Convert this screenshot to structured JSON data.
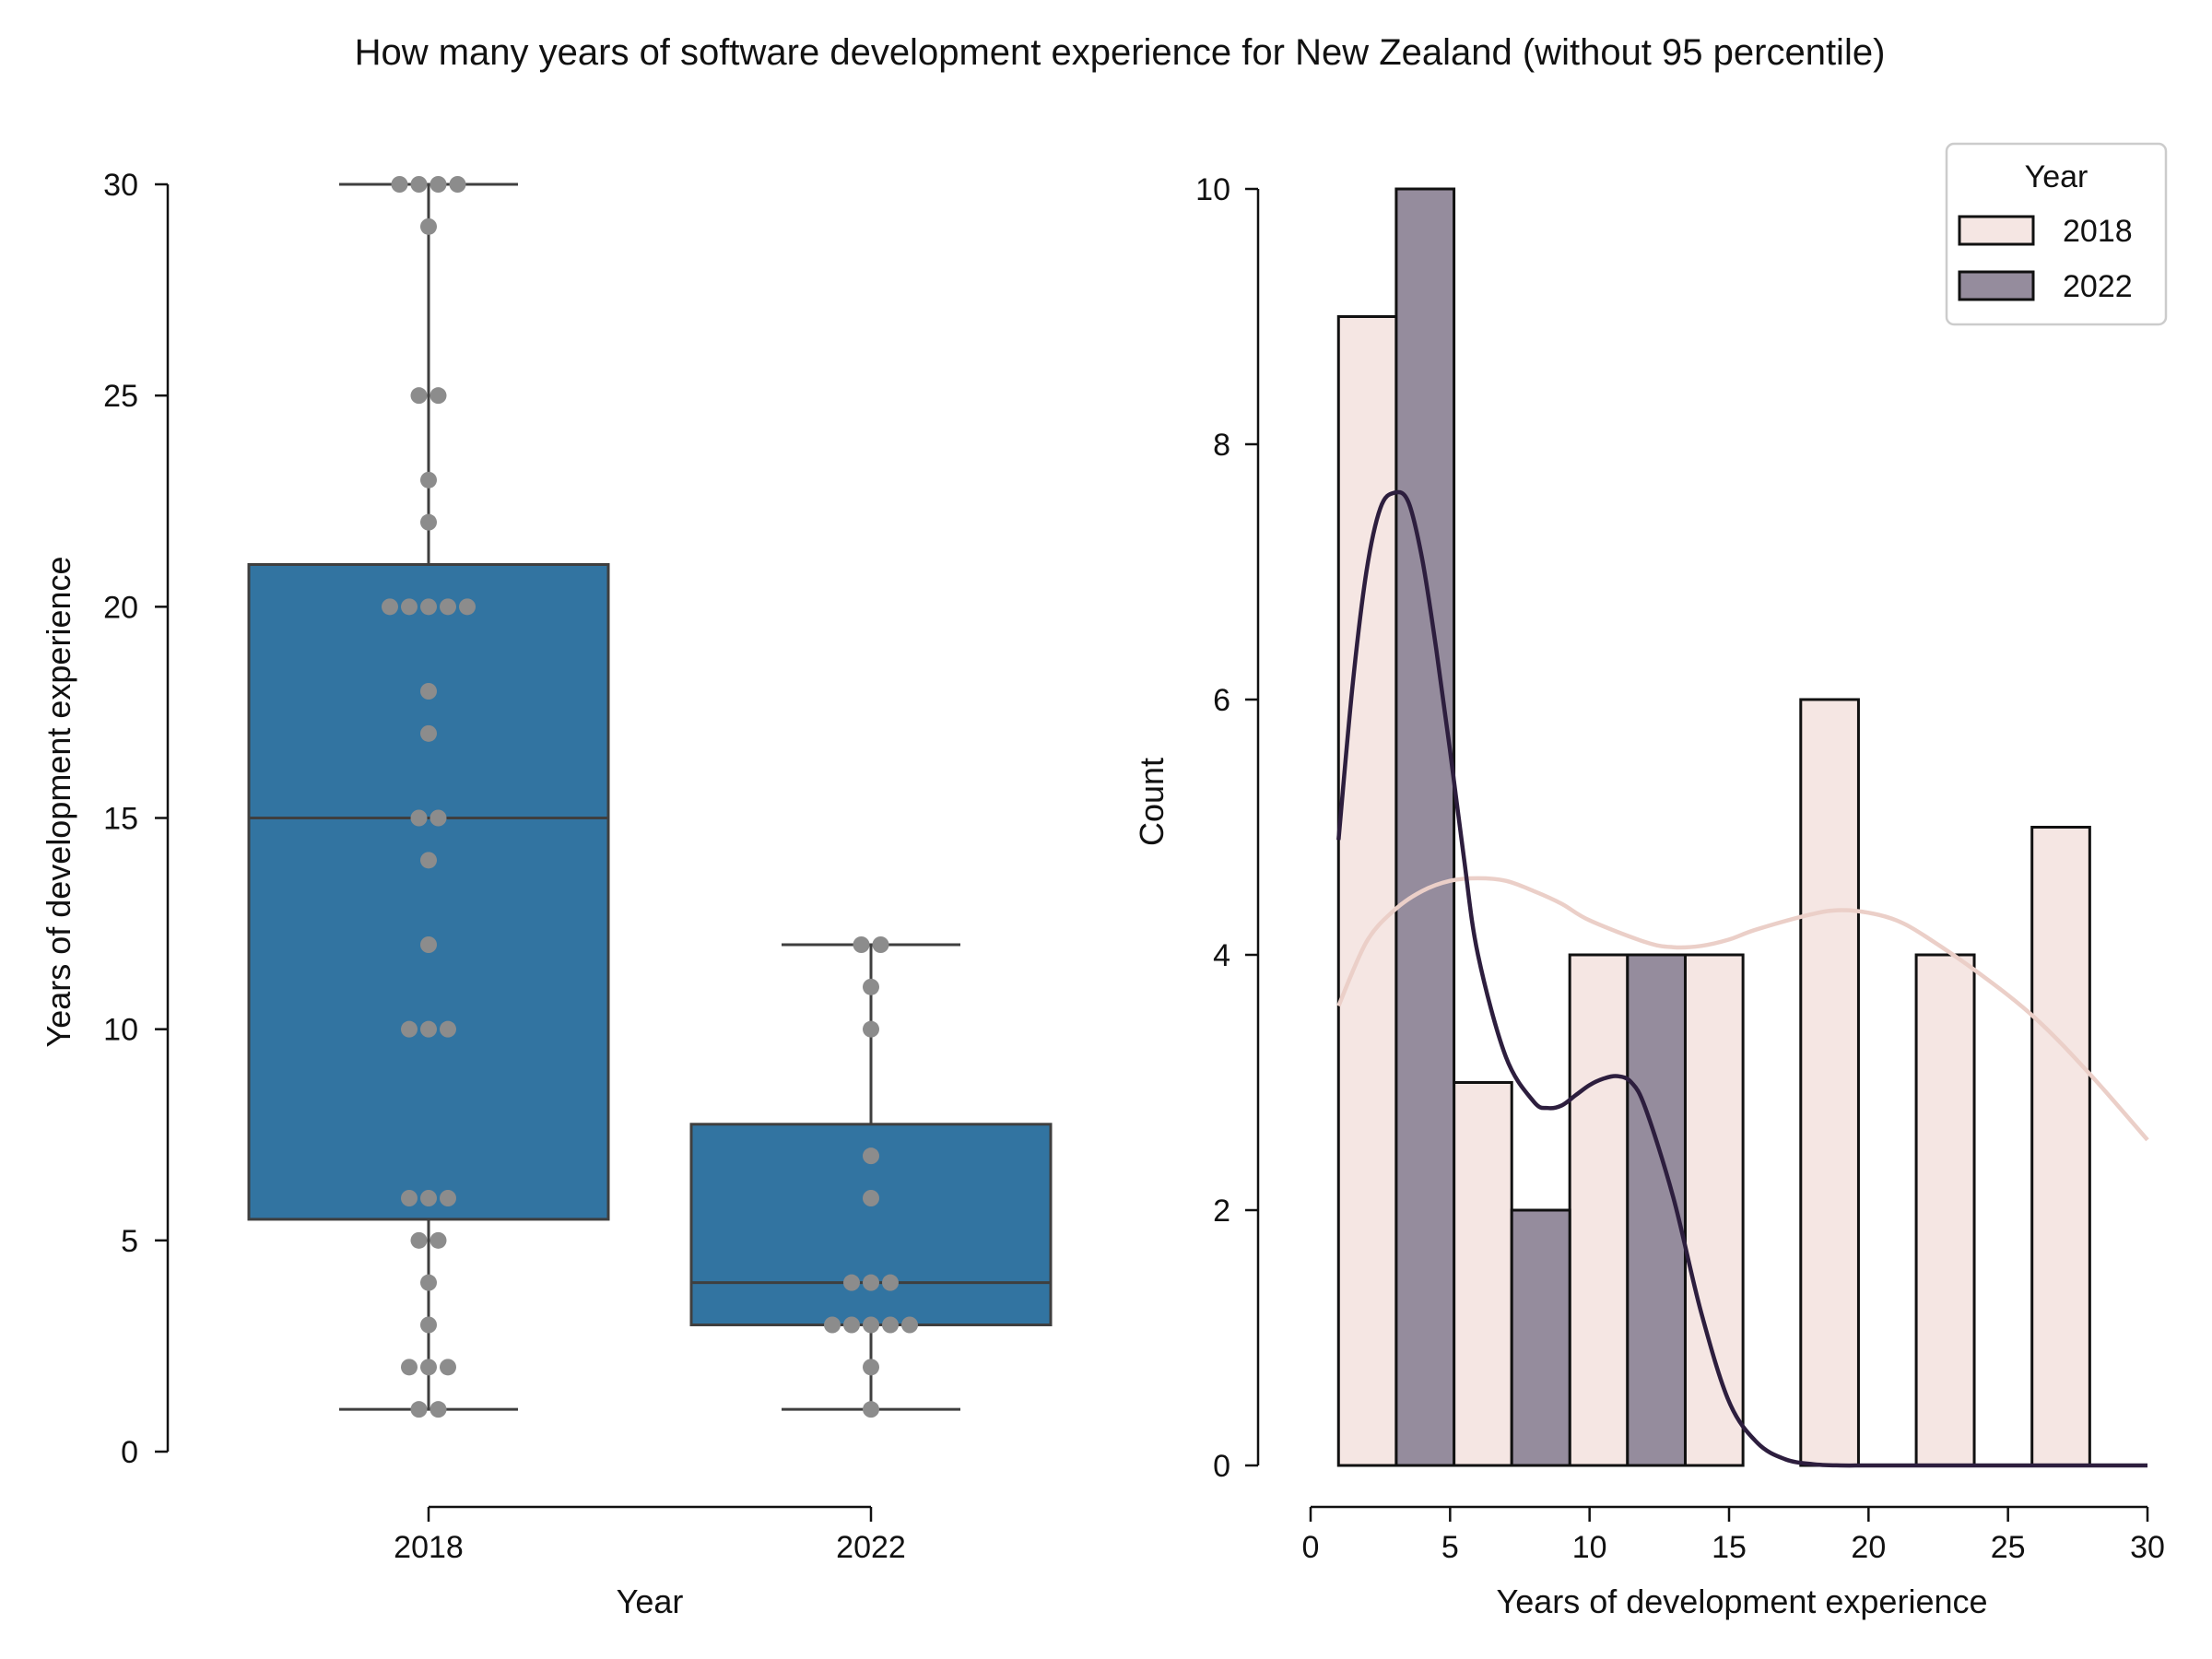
{
  "figure": {
    "title": "How many years of software development experience for New Zealand (without 95 percentile)"
  },
  "chart_data": [
    {
      "type": "box",
      "xlabel": "Year",
      "ylabel": "Years of development experience",
      "categories": [
        "2018",
        "2022"
      ],
      "ylim": [
        0,
        30
      ],
      "yticks": [
        "0",
        "5",
        "10",
        "15",
        "20",
        "25",
        "30"
      ],
      "grid": false,
      "box_color": "#3274a1",
      "point_color": "#8c8c8c",
      "boxes": [
        {
          "category": "2018",
          "whisker_low": 1,
          "q1": 5.5,
          "median": 15,
          "q3": 21,
          "whisker_high": 30
        },
        {
          "category": "2022",
          "whisker_low": 1,
          "q1": 3,
          "median": 4,
          "q3": 7.75,
          "whisker_high": 12
        }
      ],
      "points": [
        {
          "category": "2018",
          "values": [
            1,
            1,
            2,
            2,
            2,
            3,
            4,
            5,
            5,
            6,
            6,
            6,
            10,
            10,
            10,
            12,
            14,
            15,
            15,
            17,
            18,
            20,
            20,
            20,
            20,
            20,
            22,
            23,
            25,
            25,
            29,
            30,
            30,
            30,
            30
          ]
        },
        {
          "category": "2022",
          "values": [
            1,
            2,
            3,
            3,
            3,
            3,
            3,
            4,
            4,
            4,
            6,
            7,
            10,
            11,
            12,
            12
          ]
        }
      ]
    },
    {
      "type": "histogram",
      "xlabel": "Years of development experience",
      "ylabel": "Count",
      "xlim": [
        0,
        30
      ],
      "ylim": [
        0,
        10
      ],
      "xticks": [
        "0",
        "5",
        "10",
        "15",
        "20",
        "25",
        "30"
      ],
      "yticks": [
        "0",
        "2",
        "4",
        "6",
        "8",
        "10"
      ],
      "grid": false,
      "legend": {
        "title": "Year",
        "placement": "top-right"
      },
      "series": [
        {
          "name": "2018",
          "color": "#f5e6e3",
          "kde_color": "#ebcfc8",
          "bins": [
            {
              "x0": 1.0,
              "x1": 3.07,
              "count": 9
            },
            {
              "x0": 5.14,
              "x1": 7.21,
              "count": 3
            },
            {
              "x0": 9.29,
              "x1": 11.36,
              "count": 4
            },
            {
              "x0": 13.43,
              "x1": 15.5,
              "count": 4
            },
            {
              "x0": 17.57,
              "x1": 19.64,
              "count": 6
            },
            {
              "x0": 21.71,
              "x1": 23.79,
              "count": 4
            },
            {
              "x0": 25.86,
              "x1": 27.93,
              "count": 5
            }
          ],
          "kde": {
            "x": [
              1,
              2,
              3,
              4,
              5,
              6,
              7,
              8,
              9,
              10,
              12,
              13,
              14,
              15,
              16,
              18,
              19,
              20,
              21,
              22,
              24,
              26,
              28,
              30
            ],
            "y": [
              3.6,
              4.1,
              4.35,
              4.5,
              4.58,
              4.6,
              4.58,
              4.5,
              4.4,
              4.27,
              4.1,
              4.06,
              4.07,
              4.12,
              4.2,
              4.32,
              4.35,
              4.33,
              4.27,
              4.15,
              3.85,
              3.5,
              3.05,
              2.55
            ]
          }
        },
        {
          "name": "2022",
          "color": "#958c9d",
          "kde_color": "#2d1e3e",
          "bins": [
            {
              "x0": 3.07,
              "x1": 5.14,
              "count": 10
            },
            {
              "x0": 7.21,
              "x1": 9.29,
              "count": 2
            },
            {
              "x0": 11.36,
              "x1": 13.43,
              "count": 4
            }
          ],
          "kde": {
            "x": [
              1,
              1.5,
              2,
              2.5,
              3,
              3.5,
              4,
              4.5,
              5,
              5.5,
              6,
              7,
              8,
              8.5,
              9,
              9.5,
              10,
              10.5,
              11,
              11.5,
              12,
              13,
              14,
              15,
              16,
              17,
              18,
              19,
              20,
              22,
              25,
              30
            ],
            "y": [
              4.9,
              6.1,
              7.0,
              7.5,
              7.62,
              7.55,
              7.1,
              6.4,
              5.6,
              4.75,
              4.0,
              3.2,
              2.85,
              2.8,
              2.82,
              2.9,
              2.98,
              3.03,
              3.05,
              3.0,
              2.8,
              2.1,
              1.2,
              0.5,
              0.18,
              0.05,
              0.01,
              0.0,
              0.0,
              0.0,
              0.0,
              0.0
            ]
          }
        }
      ]
    }
  ]
}
